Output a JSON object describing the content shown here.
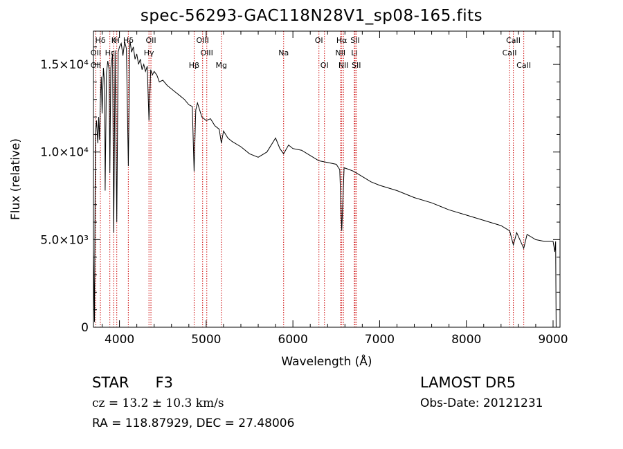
{
  "title": "spec-56293-GAC118N28V1_sp08-165.fits",
  "info": {
    "object_type": "STAR",
    "object_class": "F3",
    "survey": "LAMOST DR5",
    "cz": "cz = 13.2 ± 10.3 km/s",
    "obs_date": "Obs-Date: 20121231",
    "ra_dec": "RA = 118.87929, DEC =  27.48006"
  },
  "chart_data": {
    "type": "line",
    "xlabel": "Wavelength (Å)",
    "ylabel": "Flux (relative)",
    "xlim": [
      3700,
      9080
    ],
    "ylim": [
      0,
      16900
    ],
    "x_ticks": [
      4000,
      5000,
      6000,
      7000,
      8000,
      9000
    ],
    "y_ticks": [
      {
        "value": 0,
        "label": "0"
      },
      {
        "value": 5000,
        "label": "5.0×10³"
      },
      {
        "value": 10000,
        "label": "1.0×10⁴"
      },
      {
        "value": 15000,
        "label": "1.5×10⁴"
      }
    ],
    "grid": false,
    "colors": {
      "spectrum": "#000000",
      "lines": "#cc0000"
    },
    "line_markers": [
      {
        "label": "Hδ",
        "wavelength": 3780,
        "row": 1
      },
      {
        "label": "K",
        "wavelength": 3934,
        "row": 1
      },
      {
        "label": "H",
        "wavelength": 3969,
        "row": 1
      },
      {
        "label": "Hδ",
        "wavelength": 4102,
        "row": 1
      },
      {
        "label": "OII",
        "wavelength": 4363,
        "row": 1
      },
      {
        "label": "OIII",
        "wavelength": 4959,
        "row": 1
      },
      {
        "label": "OI",
        "wavelength": 6300,
        "row": 1
      },
      {
        "label": "Hα",
        "wavelength": 6563,
        "row": 1
      },
      {
        "label": "SII",
        "wavelength": 6717,
        "row": 1
      },
      {
        "label": "CaII",
        "wavelength": 8542,
        "row": 1
      },
      {
        "label": "OII",
        "wavelength": 3727,
        "row": 2
      },
      {
        "label": "Hε",
        "wavelength": 3889,
        "row": 2
      },
      {
        "label": "Hγ",
        "wavelength": 4340,
        "row": 2
      },
      {
        "label": "OIII",
        "wavelength": 5007,
        "row": 2
      },
      {
        "label": "Na",
        "wavelength": 5893,
        "row": 2
      },
      {
        "label": "NII",
        "wavelength": 6548,
        "row": 2
      },
      {
        "label": "Li",
        "wavelength": 6708,
        "row": 2
      },
      {
        "label": "CaII",
        "wavelength": 8498,
        "row": 2
      },
      {
        "label": "OII",
        "wavelength": 3727,
        "row": 3
      },
      {
        "label": "Hβ",
        "wavelength": 4861,
        "row": 3
      },
      {
        "label": "Mg",
        "wavelength": 5175,
        "row": 3
      },
      {
        "label": "OI",
        "wavelength": 6364,
        "row": 3
      },
      {
        "label": "NII",
        "wavelength": 6583,
        "row": 3
      },
      {
        "label": "SII",
        "wavelength": 6731,
        "row": 3
      },
      {
        "label": "CaII",
        "wavelength": 8662,
        "row": 3
      }
    ],
    "series": [
      {
        "x": [
          3700,
          3712,
          3722,
          3735,
          3750,
          3760,
          3770,
          3780,
          3790,
          3800,
          3815,
          3830,
          3835,
          3850,
          3865,
          3880,
          3889,
          3900,
          3920,
          3934,
          3950,
          3969,
          3985,
          4000,
          4020,
          4040,
          4060,
          4080,
          4102,
          4120,
          4140,
          4160,
          4180,
          4200,
          4220,
          4240,
          4260,
          4280,
          4300,
          4320,
          4340,
          4360,
          4380,
          4400,
          4430,
          4460,
          4500,
          4550,
          4600,
          4650,
          4700,
          4750,
          4800,
          4840,
          4861,
          4880,
          4900,
          4950,
          5000,
          5050,
          5100,
          5150,
          5175,
          5200,
          5250,
          5300,
          5400,
          5500,
          5600,
          5700,
          5800,
          5850,
          5893,
          5950,
          6000,
          6100,
          6200,
          6300,
          6400,
          6500,
          6540,
          6563,
          6590,
          6650,
          6700,
          6800,
          6900,
          7000,
          7200,
          7400,
          7600,
          7800,
          8000,
          8200,
          8400,
          8500,
          8542,
          8580,
          8662,
          8700,
          8800,
          8900,
          9000,
          9020,
          9030,
          9035
        ],
        "y": [
          4400,
          300,
          11000,
          11800,
          10500,
          12000,
          10700,
          13000,
          14300,
          12200,
          14800,
          13800,
          7800,
          14500,
          15200,
          14700,
          8800,
          14800,
          15600,
          5400,
          15800,
          6000,
          15700,
          16000,
          16200,
          15500,
          16300,
          15900,
          9200,
          16400,
          15700,
          16000,
          15300,
          15600,
          15000,
          15300,
          14700,
          15000,
          14600,
          14900,
          11800,
          14700,
          14400,
          14600,
          14400,
          14000,
          14100,
          13800,
          13600,
          13400,
          13200,
          13000,
          12700,
          12600,
          8900,
          12400,
          12800,
          12000,
          11800,
          11900,
          11500,
          11300,
          10500,
          11200,
          10800,
          10600,
          10300,
          9900,
          9700,
          10000,
          10800,
          10200,
          9900,
          10400,
          10200,
          10100,
          9800,
          9500,
          9400,
          9300,
          9000,
          5500,
          9100,
          9000,
          8900,
          8600,
          8300,
          8100,
          7800,
          7400,
          7100,
          6700,
          6400,
          6100,
          5800,
          5500,
          4700,
          5400,
          4500,
          5300,
          5000,
          4900,
          4900,
          4300,
          4900,
          0
        ]
      }
    ]
  }
}
